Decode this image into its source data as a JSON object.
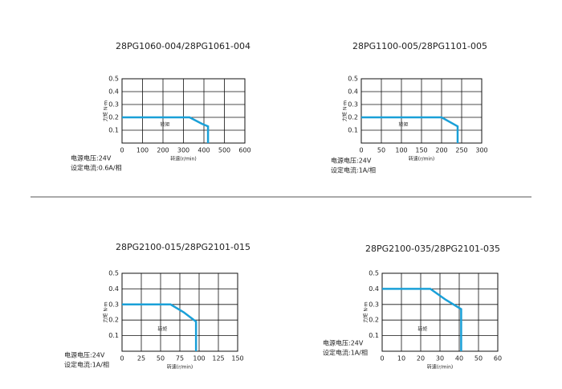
{
  "chart_data": [
    {
      "type": "line",
      "title": "28PG1060-004/28PG1061-004",
      "x_label": "转速(r/min)",
      "y_label": "力矩 N·m",
      "notes": [
        "电源电压:24V",
        "设定电流:0.6A/相"
      ],
      "x": [
        0,
        330,
        390,
        420,
        420
      ],
      "series": [
        {
          "name": "转矩",
          "color": "#1aa0d8",
          "values": [
            0.2,
            0.2,
            0.15,
            0.13,
            0
          ]
        }
      ],
      "xlim": [
        0,
        600
      ],
      "xticks": [
        0,
        100,
        200,
        300,
        400,
        500,
        600
      ],
      "ylim": [
        0,
        0.5
      ],
      "yticks": [
        0.1,
        0.2,
        0.3,
        0.4,
        0.5
      ],
      "grid": true
    },
    {
      "type": "line",
      "title": "28PG1100-005/28PG1101-005",
      "x_label": "转速(r/min)",
      "y_label": "力矩 N·m",
      "notes": [
        "电源电压:24V",
        "设定电流:1A/相"
      ],
      "x": [
        0,
        200,
        240,
        240
      ],
      "series": [
        {
          "name": "转矩",
          "color": "#1aa0d8",
          "values": [
            0.2,
            0.2,
            0.13,
            0
          ]
        }
      ],
      "xlim": [
        0,
        300
      ],
      "xticks": [
        0,
        50,
        100,
        150,
        200,
        250,
        300
      ],
      "ylim": [
        0,
        0.5
      ],
      "yticks": [
        0.1,
        0.2,
        0.3,
        0.4,
        0.5
      ],
      "grid": true
    },
    {
      "type": "line",
      "title": "28PG2100-015/28PG2101-015",
      "x_label": "转速(r/min)",
      "y_label": "力矩 N·m",
      "notes": [
        "电源电压:24V",
        "设定电流:1A/相"
      ],
      "x": [
        0,
        63,
        80,
        96,
        96
      ],
      "series": [
        {
          "name": "转矩",
          "color": "#1aa0d8",
          "values": [
            0.3,
            0.3,
            0.25,
            0.19,
            0
          ]
        }
      ],
      "xlim": [
        0,
        150
      ],
      "xticks": [
        0,
        25,
        50,
        75,
        100,
        125,
        150
      ],
      "ylim": [
        0,
        0.5
      ],
      "yticks": [
        0.1,
        0.2,
        0.3,
        0.4,
        0.5
      ],
      "grid": true
    },
    {
      "type": "line",
      "title": "28PG2100-035/28PG2101-035",
      "x_label": "转速(r/min)",
      "y_label": "力矩 N·m",
      "notes": [
        "电源电压:24V",
        "设定电流:1A/相"
      ],
      "x": [
        0,
        25,
        33,
        41,
        41
      ],
      "series": [
        {
          "name": "转矩",
          "color": "#1aa0d8",
          "values": [
            0.4,
            0.4,
            0.33,
            0.27,
            0
          ]
        }
      ],
      "xlim": [
        0,
        60
      ],
      "xticks": [
        0,
        10,
        20,
        30,
        40,
        50,
        60
      ],
      "ylim": [
        0,
        0.5
      ],
      "yticks": [
        0.1,
        0.2,
        0.3,
        0.4,
        0.5
      ],
      "grid": true
    }
  ]
}
